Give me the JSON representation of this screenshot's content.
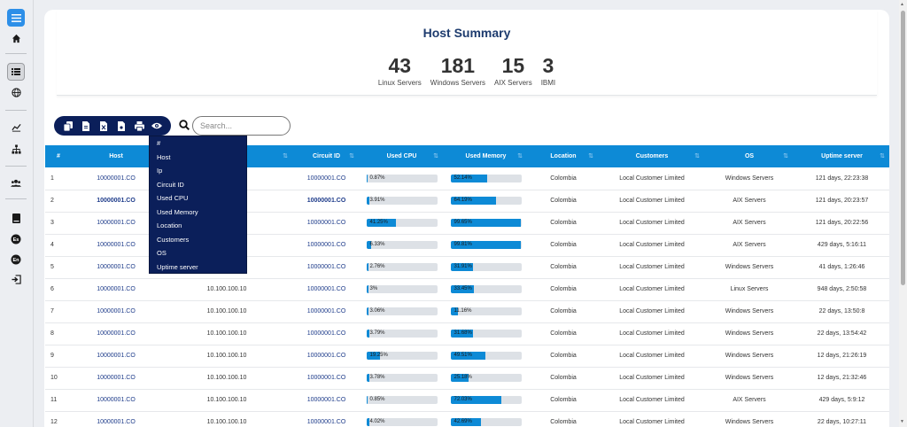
{
  "summary": {
    "title": "Host Summary",
    "stats": [
      {
        "value": "43",
        "label": "Linux Servers"
      },
      {
        "value": "181",
        "label": "Windows Servers"
      },
      {
        "value": "15",
        "label": "AIX Servers"
      },
      {
        "value": "3",
        "label": "IBMI"
      }
    ]
  },
  "search": {
    "placeholder": "Search..."
  },
  "columns": [
    "#",
    "Host",
    "Ip",
    "Circuit ID",
    "Used CPU",
    "Used Memory",
    "Location",
    "Customers",
    "OS",
    "Uptime server"
  ],
  "dropdown": [
    "#",
    "Host",
    "Ip",
    "Circuit ID",
    "Used CPU",
    "Used Memory",
    "Location",
    "Customers",
    "OS",
    "Uptime server"
  ],
  "rows": [
    {
      "n": "1",
      "host": "10000001.CO",
      "ip": "",
      "circuit": "10000001.CO",
      "cpu": "0.87%",
      "cpu_pct": 0.87,
      "mem": "52.14%",
      "mem_pct": 52.14,
      "location": "Colombia",
      "customer": "Local Customer Limited",
      "os": "Windows Servers",
      "uptime": "121 days, 22:23:38"
    },
    {
      "n": "2",
      "host": "10000001.CO",
      "ip": "",
      "circuit": "10000001.CO",
      "cpu": "3.91%",
      "cpu_pct": 3.91,
      "mem": "64.19%",
      "mem_pct": 64.19,
      "location": "Colombia",
      "customer": "Local Customer Limited",
      "os": "AIX Servers",
      "uptime": "121 days, 20:23:57"
    },
    {
      "n": "3",
      "host": "10000001.CO",
      "ip": "",
      "circuit": "10000001.CO",
      "cpu": "41.25%",
      "cpu_pct": 41.25,
      "mem": "99.65%",
      "mem_pct": 99.65,
      "location": "Colombia",
      "customer": "Local Customer Limited",
      "os": "AIX Servers",
      "uptime": "121 days, 20:22:56"
    },
    {
      "n": "4",
      "host": "10000001.CO",
      "ip": "",
      "circuit": "10000001.CO",
      "cpu": "6.33%",
      "cpu_pct": 6.33,
      "mem": "99.81%",
      "mem_pct": 99.81,
      "location": "Colombia",
      "customer": "Local Customer Limited",
      "os": "AIX Servers",
      "uptime": "429 days, 5:16:11"
    },
    {
      "n": "5",
      "host": "10000001.CO",
      "ip": "",
      "circuit": "10000001.CO",
      "cpu": "2.76%",
      "cpu_pct": 2.76,
      "mem": "31.91%",
      "mem_pct": 31.91,
      "location": "Colombia",
      "customer": "Local Customer Limited",
      "os": "Windows Servers",
      "uptime": "41 days, 1:26:46"
    },
    {
      "n": "6",
      "host": "10000001.CO",
      "ip": "10.100.100.10",
      "circuit": "10000001.CO",
      "cpu": "3%",
      "cpu_pct": 3,
      "mem": "33.45%",
      "mem_pct": 33.45,
      "location": "Colombia",
      "customer": "Local Customer Limited",
      "os": "Linux Servers",
      "uptime": "948 days, 2:50:58"
    },
    {
      "n": "7",
      "host": "10000001.CO",
      "ip": "10.100.100.10",
      "circuit": "10000001.CO",
      "cpu": "3.06%",
      "cpu_pct": 3.06,
      "mem": "11.16%",
      "mem_pct": 11.16,
      "location": "Colombia",
      "customer": "Local Customer Limited",
      "os": "Windows Servers",
      "uptime": "22 days, 13:50:8"
    },
    {
      "n": "8",
      "host": "10000001.CO",
      "ip": "10.100.100.10",
      "circuit": "10000001.CO",
      "cpu": "3.79%",
      "cpu_pct": 3.79,
      "mem": "31.68%",
      "mem_pct": 31.68,
      "location": "Colombia",
      "customer": "Local Customer Limited",
      "os": "Windows Servers",
      "uptime": "22 days, 13:54:42"
    },
    {
      "n": "9",
      "host": "10000001.CO",
      "ip": "10.100.100.10",
      "circuit": "10000001.CO",
      "cpu": "19.25%",
      "cpu_pct": 19.25,
      "mem": "49.51%",
      "mem_pct": 49.51,
      "location": "Colombia",
      "customer": "Local Customer Limited",
      "os": "Windows Servers",
      "uptime": "12 days, 21:26:19"
    },
    {
      "n": "10",
      "host": "10000001.CO",
      "ip": "10.100.100.10",
      "circuit": "10000001.CO",
      "cpu": "3.78%",
      "cpu_pct": 3.78,
      "mem": "25.18%",
      "mem_pct": 25.18,
      "location": "Colombia",
      "customer": "Local Customer Limited",
      "os": "Windows Servers",
      "uptime": "12 days, 21:32:46"
    },
    {
      "n": "11",
      "host": "10000001.CO",
      "ip": "10.100.100.10",
      "circuit": "10000001.CO",
      "cpu": "0.85%",
      "cpu_pct": 0.85,
      "mem": "72.03%",
      "mem_pct": 72.03,
      "location": "Colombia",
      "customer": "Local Customer Limited",
      "os": "AIX Servers",
      "uptime": "429 days, 5:9:12"
    },
    {
      "n": "12",
      "host": "10000001.CO",
      "ip": "10.100.100.10",
      "circuit": "10000001.CO",
      "cpu": "4.02%",
      "cpu_pct": 4.02,
      "mem": "42.69%",
      "mem_pct": 42.69,
      "location": "Colombia",
      "customer": "Local Customer Limited",
      "os": "Windows Servers",
      "uptime": "22 days, 10:27:11"
    }
  ]
}
